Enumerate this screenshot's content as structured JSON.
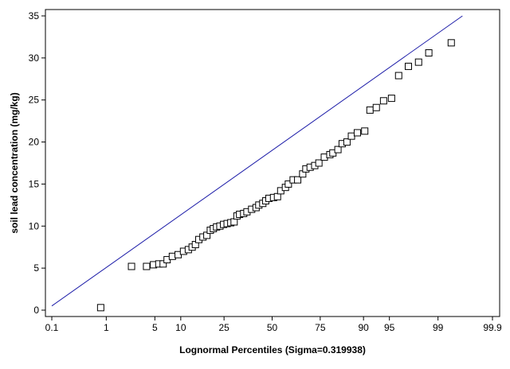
{
  "chart_data": {
    "type": "scatter",
    "title": "",
    "xlabel": "Lognormal Percentiles (Sigma=0.319938)",
    "ylabel": "soil lead concentration (mg/kg)",
    "x_scale": "normal-probability",
    "x_ticks": [
      0.1,
      1,
      5,
      10,
      25,
      50,
      75,
      90,
      95,
      99,
      99.9
    ],
    "x_tick_labels": [
      "0.1",
      "1",
      "5",
      "10",
      "25",
      "50",
      "75",
      "90",
      "95",
      "99",
      "99.9"
    ],
    "ylim": [
      0,
      35
    ],
    "y_ticks": [
      0,
      5,
      10,
      15,
      20,
      25,
      30,
      35
    ],
    "y_tick_labels": [
      "0",
      "5",
      "10",
      "15",
      "20",
      "25",
      "30",
      "35"
    ],
    "grid": false,
    "legend": "none",
    "marker": "open-square",
    "marker_color": "#000000",
    "fit_line_color": "#1c1ca8",
    "fit_line": {
      "x": [
        0.1,
        99.62
      ],
      "y": [
        0.5,
        35
      ]
    },
    "series": [
      {
        "x": [
          0.81,
          2.43,
          3.91,
          4.81,
          5.6,
          6.32,
          7.04,
          8.09,
          9.37,
          10.7,
          12.0,
          13.1,
          14.1,
          15.2,
          16.6,
          18.0,
          19.3,
          20.5,
          21.8,
          23.2,
          24.8,
          26.4,
          28.1,
          29.7,
          31.1,
          32.4,
          34.5,
          36.2,
          38.7,
          41.1,
          42.6,
          44.8,
          46.4,
          48.2,
          50.8,
          53.0,
          54.8,
          57.4,
          59.0,
          61.6,
          64.0,
          66.6,
          68.2,
          70.3,
          72.5,
          74.4,
          76.8,
          79.1,
          80.3,
          82.2,
          83.7,
          85.3,
          86.7,
          88.4,
          90.3,
          91.5,
          92.8,
          94.1,
          95.3,
          96.2,
          97.2,
          98.0,
          98.6,
          99.4
        ],
        "y": [
          0.3,
          5.2,
          5.2,
          5.4,
          5.5,
          5.5,
          6.0,
          6.4,
          6.6,
          7.0,
          7.2,
          7.5,
          7.8,
          8.4,
          8.7,
          8.9,
          9.5,
          9.7,
          9.9,
          10.0,
          10.2,
          10.3,
          10.4,
          10.5,
          11.2,
          11.4,
          11.5,
          11.7,
          12.0,
          12.2,
          12.5,
          12.7,
          13.0,
          13.3,
          13.4,
          13.5,
          14.2,
          14.6,
          15.0,
          15.5,
          15.5,
          16.2,
          16.8,
          17.0,
          17.2,
          17.5,
          18.2,
          18.5,
          18.7,
          19.1,
          19.8,
          20.0,
          20.7,
          21.1,
          21.3,
          23.8,
          24.1,
          24.9,
          25.2,
          27.9,
          29.0,
          29.5,
          30.6,
          31.8
        ]
      }
    ]
  }
}
